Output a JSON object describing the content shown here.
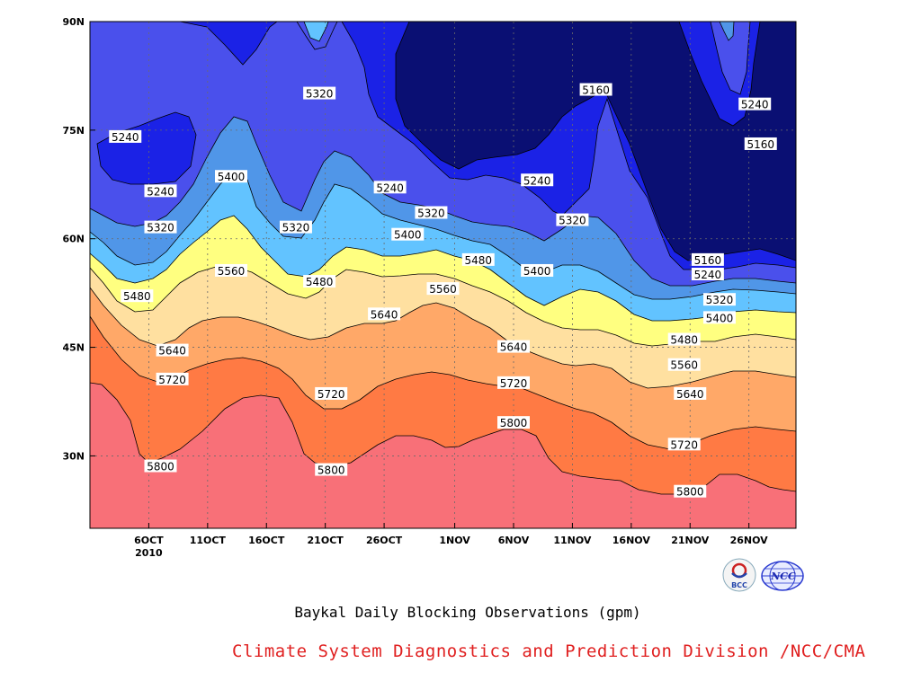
{
  "chart_data": {
    "type": "contour",
    "title": "Baykal Daily Blocking Observations (gpm)",
    "source": "Climate System Diagnostics and Prediction Division /NCC/CMA",
    "x_ticks": [
      {
        "label": "6OCT",
        "sub": "2010",
        "day": 6
      },
      {
        "label": "11OCT",
        "day": 11
      },
      {
        "label": "16OCT",
        "day": 16
      },
      {
        "label": "21OCT",
        "day": 21
      },
      {
        "label": "26OCT",
        "day": 26
      },
      {
        "label": "1NOV",
        "day": 32
      },
      {
        "label": "6NOV",
        "day": 37
      },
      {
        "label": "11NOV",
        "day": 42
      },
      {
        "label": "16NOV",
        "day": 47
      },
      {
        "label": "21NOV",
        "day": 52
      },
      {
        "label": "26NOV",
        "day": 57
      }
    ],
    "y_ticks": [
      {
        "label": "30N",
        "lat": 30
      },
      {
        "label": "45N",
        "lat": 45
      },
      {
        "label": "60N",
        "lat": 60
      },
      {
        "label": "75N",
        "lat": 75
      },
      {
        "label": "90N",
        "lat": 90
      }
    ],
    "xlim": [
      1,
      61
    ],
    "ylim": [
      20,
      90
    ],
    "levels": [
      5160,
      5240,
      5320,
      5400,
      5480,
      5560,
      5640,
      5720,
      5800
    ],
    "fill_colors": [
      "#0a0f73",
      "#1b22e6",
      "#4a50ec",
      "#5096e8",
      "#62c3ff",
      "#ffff80",
      "#ffe0a0",
      "#ffa868",
      "#ff7a44",
      "#f87078"
    ],
    "grid": true,
    "contour_labels": [
      {
        "text": "5240",
        "day": 4,
        "lat": 74
      },
      {
        "text": "5240",
        "day": 7,
        "lat": 66.5
      },
      {
        "text": "5320",
        "day": 7,
        "lat": 61.5
      },
      {
        "text": "5480",
        "day": 5,
        "lat": 52
      },
      {
        "text": "5640",
        "day": 8,
        "lat": 44.5
      },
      {
        "text": "5720",
        "day": 8,
        "lat": 40.5
      },
      {
        "text": "5800",
        "day": 7,
        "lat": 28.5
      },
      {
        "text": "5400",
        "day": 13,
        "lat": 68.5
      },
      {
        "text": "5560",
        "day": 13,
        "lat": 55.5
      },
      {
        "text": "5320",
        "day": 18.5,
        "lat": 61.5
      },
      {
        "text": "5480",
        "day": 20.5,
        "lat": 54
      },
      {
        "text": "5320",
        "day": 20.5,
        "lat": 80
      },
      {
        "text": "5720",
        "day": 21.5,
        "lat": 38.5
      },
      {
        "text": "5800",
        "day": 21.5,
        "lat": 28
      },
      {
        "text": "5240",
        "day": 26.5,
        "lat": 67
      },
      {
        "text": "5640",
        "day": 26,
        "lat": 49.5
      },
      {
        "text": "5320",
        "day": 30,
        "lat": 63.5
      },
      {
        "text": "5400",
        "day": 28,
        "lat": 60.5
      },
      {
        "text": "5560",
        "day": 31,
        "lat": 53
      },
      {
        "text": "5480",
        "day": 34,
        "lat": 57
      },
      {
        "text": "5160",
        "day": 44,
        "lat": 80.5
      },
      {
        "text": "5240",
        "day": 39,
        "lat": 68
      },
      {
        "text": "5320",
        "day": 42,
        "lat": 62.5
      },
      {
        "text": "5400",
        "day": 39,
        "lat": 55.5
      },
      {
        "text": "5640",
        "day": 37,
        "lat": 45
      },
      {
        "text": "5720",
        "day": 37,
        "lat": 40
      },
      {
        "text": "5800",
        "day": 37,
        "lat": 34.5
      },
      {
        "text": "5160",
        "day": 53.5,
        "lat": 57
      },
      {
        "text": "5240",
        "day": 53.5,
        "lat": 55
      },
      {
        "text": "5320",
        "day": 54.5,
        "lat": 51.5
      },
      {
        "text": "5400",
        "day": 54.5,
        "lat": 49
      },
      {
        "text": "5480",
        "day": 51.5,
        "lat": 46
      },
      {
        "text": "5560",
        "day": 51.5,
        "lat": 42.5
      },
      {
        "text": "5640",
        "day": 52,
        "lat": 38.5
      },
      {
        "text": "5720",
        "day": 51.5,
        "lat": 31.5
      },
      {
        "text": "5800",
        "day": 52,
        "lat": 25
      },
      {
        "text": "5240",
        "day": 57.5,
        "lat": 78.5
      },
      {
        "text": "5160",
        "day": 58,
        "lat": 73
      }
    ]
  },
  "logos": {
    "left": "BCC",
    "right": "NCC"
  }
}
